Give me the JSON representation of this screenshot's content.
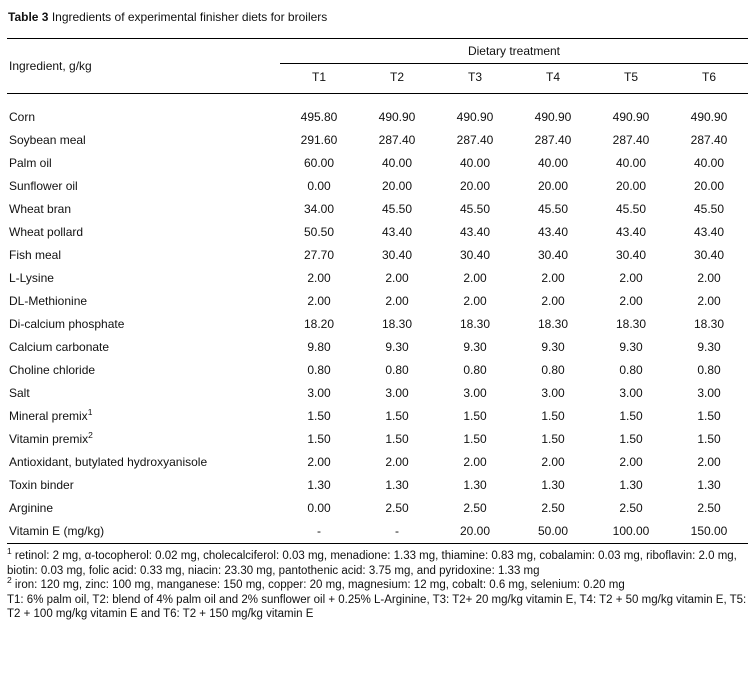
{
  "title": {
    "label": "Table 3",
    "text": "Ingredients of experimental finisher diets for broilers"
  },
  "table": {
    "ingredient_header": "Ingredient, g/kg",
    "group_header": "Dietary treatment",
    "columns": [
      "T1",
      "T2",
      "T3",
      "T4",
      "T5",
      "T6"
    ],
    "rows": [
      {
        "ingredient": "Corn",
        "sup": "",
        "values": [
          "495.80",
          "490.90",
          "490.90",
          "490.90",
          "490.90",
          "490.90"
        ]
      },
      {
        "ingredient": "Soybean meal",
        "sup": "",
        "values": [
          "291.60",
          "287.40",
          "287.40",
          "287.40",
          "287.40",
          "287.40"
        ]
      },
      {
        "ingredient": "Palm oil",
        "sup": "",
        "values": [
          "60.00",
          "40.00",
          "40.00",
          "40.00",
          "40.00",
          "40.00"
        ]
      },
      {
        "ingredient": "Sunflower oil",
        "sup": "",
        "values": [
          "0.00",
          "20.00",
          "20.00",
          "20.00",
          "20.00",
          "20.00"
        ]
      },
      {
        "ingredient": "Wheat bran",
        "sup": "",
        "values": [
          "34.00",
          "45.50",
          "45.50",
          "45.50",
          "45.50",
          "45.50"
        ]
      },
      {
        "ingredient": "Wheat pollard",
        "sup": "",
        "values": [
          "50.50",
          "43.40",
          "43.40",
          "43.40",
          "43.40",
          "43.40"
        ]
      },
      {
        "ingredient": "Fish meal",
        "sup": "",
        "values": [
          "27.70",
          "30.40",
          "30.40",
          "30.40",
          "30.40",
          "30.40"
        ]
      },
      {
        "ingredient": "L-Lysine",
        "sup": "",
        "values": [
          "2.00",
          "2.00",
          "2.00",
          "2.00",
          "2.00",
          "2.00"
        ]
      },
      {
        "ingredient": "DL-Methionine",
        "sup": "",
        "values": [
          "2.00",
          "2.00",
          "2.00",
          "2.00",
          "2.00",
          "2.00"
        ]
      },
      {
        "ingredient": "Di-calcium phosphate",
        "sup": "",
        "values": [
          "18.20",
          "18.30",
          "18.30",
          "18.30",
          "18.30",
          "18.30"
        ]
      },
      {
        "ingredient": "Calcium carbonate",
        "sup": "",
        "values": [
          "9.80",
          "9.30",
          "9.30",
          "9.30",
          "9.30",
          "9.30"
        ]
      },
      {
        "ingredient": "Choline chloride",
        "sup": "",
        "values": [
          "0.80",
          "0.80",
          "0.80",
          "0.80",
          "0.80",
          "0.80"
        ]
      },
      {
        "ingredient": "Salt",
        "sup": "",
        "values": [
          "3.00",
          "3.00",
          "3.00",
          "3.00",
          "3.00",
          "3.00"
        ]
      },
      {
        "ingredient": "Mineral premix",
        "sup": "1",
        "values": [
          "1.50",
          "1.50",
          "1.50",
          "1.50",
          "1.50",
          "1.50"
        ]
      },
      {
        "ingredient": "Vitamin premix",
        "sup": "2",
        "values": [
          "1.50",
          "1.50",
          "1.50",
          "1.50",
          "1.50",
          "1.50"
        ]
      },
      {
        "ingredient": "Antioxidant, butylated hydroxyanisole",
        "sup": "",
        "values": [
          "2.00",
          "2.00",
          "2.00",
          "2.00",
          "2.00",
          "2.00"
        ]
      },
      {
        "ingredient": "Toxin binder",
        "sup": "",
        "values": [
          "1.30",
          "1.30",
          "1.30",
          "1.30",
          "1.30",
          "1.30"
        ]
      },
      {
        "ingredient": "Arginine",
        "sup": "",
        "values": [
          "0.00",
          "2.50",
          "2.50",
          "2.50",
          "2.50",
          "2.50"
        ]
      },
      {
        "ingredient": "Vitamin E (mg/kg)",
        "sup": "",
        "values": [
          "-",
          "-",
          "20.00",
          "50.00",
          "100.00",
          "150.00"
        ]
      }
    ],
    "footnotes": [
      {
        "marker": "1",
        "text": "retinol: 2 mg, α-tocopherol: 0.02 mg, cholecalciferol: 0.03 mg, menadione: 1.33 mg, thiamine: 0.83 mg, cobalamin: 0.03 mg, riboflavin: 2.0 mg, biotin: 0.03 mg, folic acid: 0.33 mg, niacin: 23.30 mg, pantothenic acid: 3.75 mg, and pyridoxine: 1.33 mg"
      },
      {
        "marker": "2",
        "text": "iron: 120 mg, zinc: 100 mg, manganese: 150 mg, copper: 20 mg, magnesium: 12 mg, cobalt: 0.6 mg, selenium: 0.20 mg"
      },
      {
        "marker": "",
        "text": "T1: 6% palm oil, T2: blend of 4% palm oil and 2% sunflower oil + 0.25% L-Arginine, T3: T2+ 20 mg/kg vitamin E, T4: T2 + 50 mg/kg vitamin E, T5: T2 + 100 mg/kg vitamin E and T6: T2 + 150 mg/kg vitamin E"
      }
    ]
  }
}
